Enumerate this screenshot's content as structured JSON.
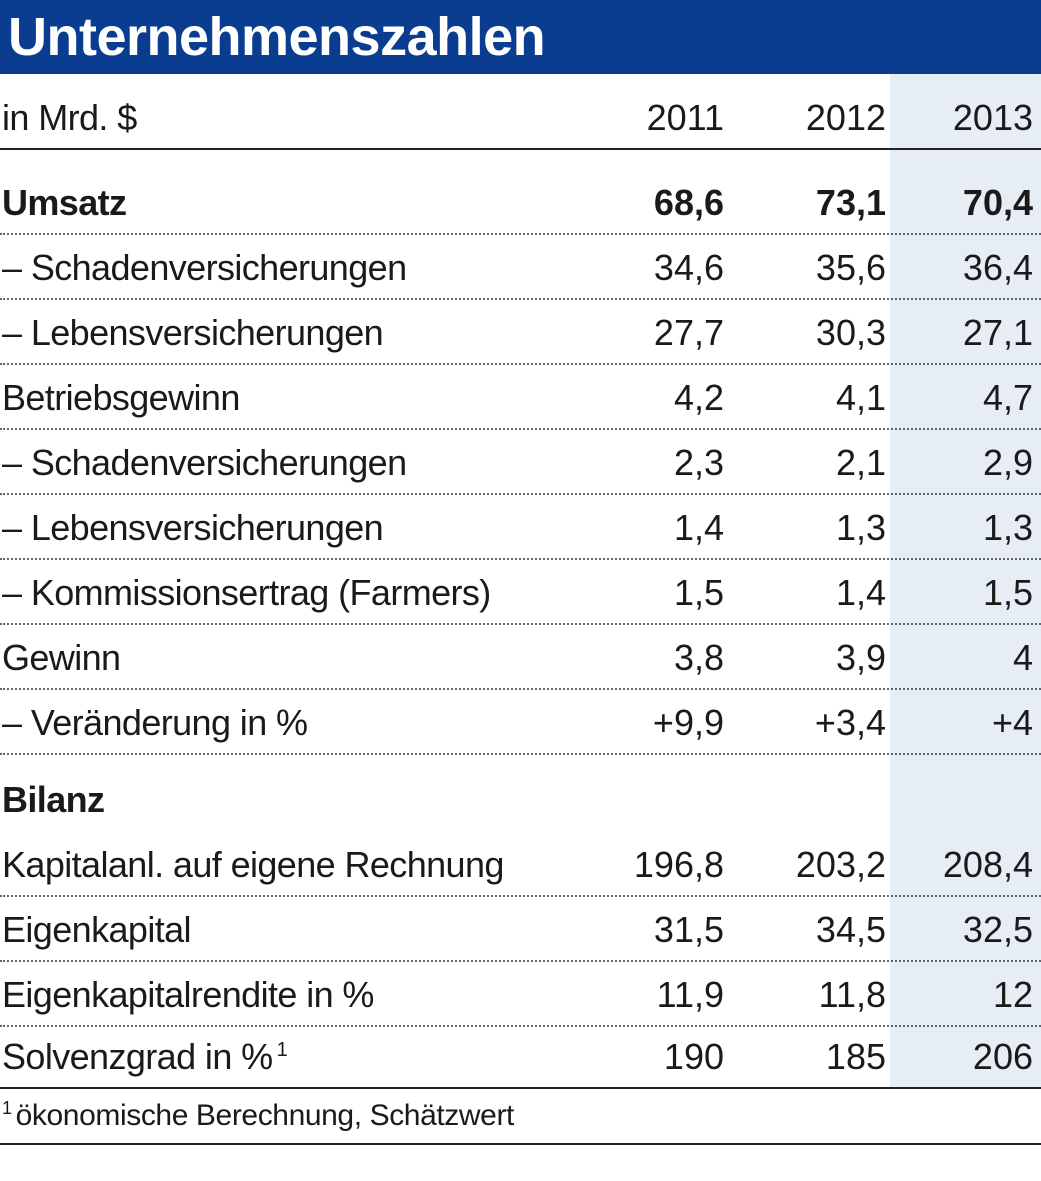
{
  "title": "Unternehmenszahlen",
  "header": {
    "label": "in Mrd. $",
    "years": [
      "2011",
      "2012",
      "2013"
    ]
  },
  "rows": [
    {
      "label": "Umsatz",
      "values": [
        "68,6",
        "73,1",
        "70,4"
      ]
    },
    {
      "label": "– Schadenversicherungen",
      "values": [
        "34,6",
        "35,6",
        "36,4"
      ]
    },
    {
      "label": "– Lebensversicherungen",
      "values": [
        "27,7",
        "30,3",
        "27,1"
      ]
    },
    {
      "label": "Betriebsgewinn",
      "values": [
        "4,2",
        "4,1",
        "4,7"
      ]
    },
    {
      "label": "– Schadenversicherungen",
      "values": [
        "2,3",
        "2,1",
        "2,9"
      ]
    },
    {
      "label": "– Lebensversicherungen",
      "values": [
        "1,4",
        "1,3",
        "1,3"
      ]
    },
    {
      "label": "– Kommissionsertrag (Farmers)",
      "values": [
        "1,5",
        "1,4",
        "1,5"
      ]
    },
    {
      "label": "Gewinn",
      "values": [
        "3,8",
        "3,9",
        "4"
      ]
    },
    {
      "label": "– Veränderung in %",
      "values": [
        "+9,9",
        "+3,4",
        "+4"
      ]
    }
  ],
  "bilanz_heading": "Bilanz",
  "bilanz_rows": [
    {
      "label": "Kapitalanl. auf eigene Rechnung",
      "values": [
        "196,8",
        "203,2",
        "208,4"
      ]
    },
    {
      "label": "Eigenkapital",
      "values": [
        "31,5",
        "34,5",
        "32,5"
      ]
    },
    {
      "label": "Eigenkapitalrendite in %",
      "values": [
        "11,9",
        "11,8",
        "12"
      ]
    },
    {
      "label": "Solvenzgrad in %",
      "footnote_mark": "1",
      "values": [
        "190",
        "185",
        "206"
      ]
    }
  ],
  "footnote": {
    "mark": "1",
    "text": "ökonomische Berechnung, Schätzwert"
  },
  "colors": {
    "title_bar": "#0a3d8f",
    "highlight_column": "#e7edf4"
  }
}
